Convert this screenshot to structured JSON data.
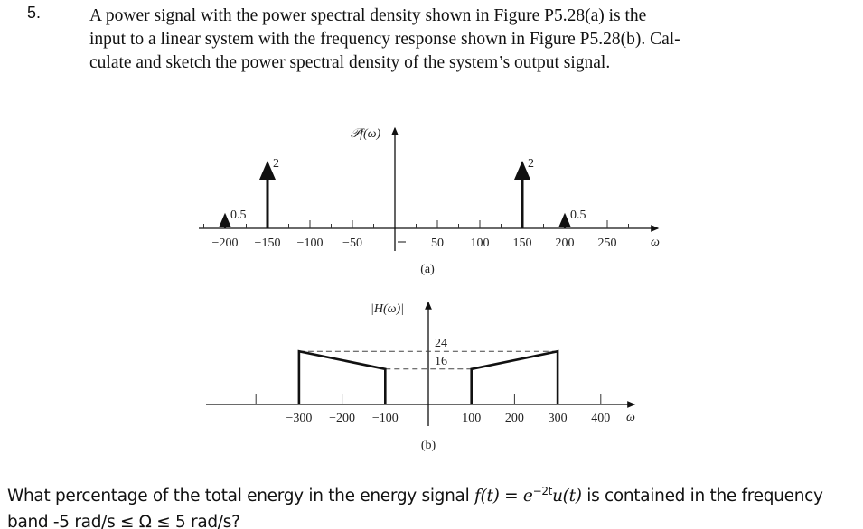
{
  "problem_number": "5.",
  "problem_lines": [
    "A power signal with the power spectral density shown in Figure P5.28(a) is the",
    "input to a linear system with the frequency response shown in Figure P5.28(b). Cal-",
    "culate and sketch the power spectral density of the system’s output signal."
  ],
  "question": {
    "line1_a": "What percentage of the total energy in the energy signal ",
    "signal": "f(t)",
    "eq": " = ",
    "expr": "e",
    "exponent": "−2t",
    "expr_tail": "u(t)",
    "line1_b": " is contained in the frequency",
    "line2": "band -5 rad/s ≤ Ω ≤ 5 rad/s?"
  },
  "chart_data": [
    {
      "type": "impulse",
      "ylabel": "𝒫f(ω)",
      "xlabel": "ω",
      "caption": "(a)",
      "xticks": [
        "−200",
        "−150",
        "−100",
        "−50",
        "50",
        "100",
        "150",
        "200",
        "250"
      ],
      "xtick_values": [
        -200,
        -150,
        -100,
        -50,
        50,
        100,
        150,
        200,
        250
      ],
      "impulses": [
        {
          "x": -200,
          "value": 0.5,
          "label": "0.5"
        },
        {
          "x": -150,
          "value": 2,
          "label": "2"
        },
        {
          "x": 150,
          "value": 2,
          "label": "2"
        },
        {
          "x": 200,
          "value": 0.5,
          "label": "0.5"
        }
      ]
    },
    {
      "type": "line",
      "ylabel": "|H(ω)|",
      "xlabel": "ω",
      "caption": "(b)",
      "xticks": [
        "−300",
        "−200",
        "−100",
        "100",
        "200",
        "300",
        "400"
      ],
      "xtick_values": [
        -300,
        -200,
        -100,
        100,
        200,
        300,
        400
      ],
      "ylevels": [
        {
          "value": 24,
          "label": "24"
        },
        {
          "value": 16,
          "label": "16"
        }
      ],
      "segments": [
        {
          "x": [
            -300,
            -300,
            -100,
            -100
          ],
          "y": [
            0,
            24,
            16,
            0
          ]
        },
        {
          "x": [
            100,
            100,
            300,
            300
          ],
          "y": [
            0,
            16,
            24,
            0
          ]
        }
      ]
    }
  ]
}
